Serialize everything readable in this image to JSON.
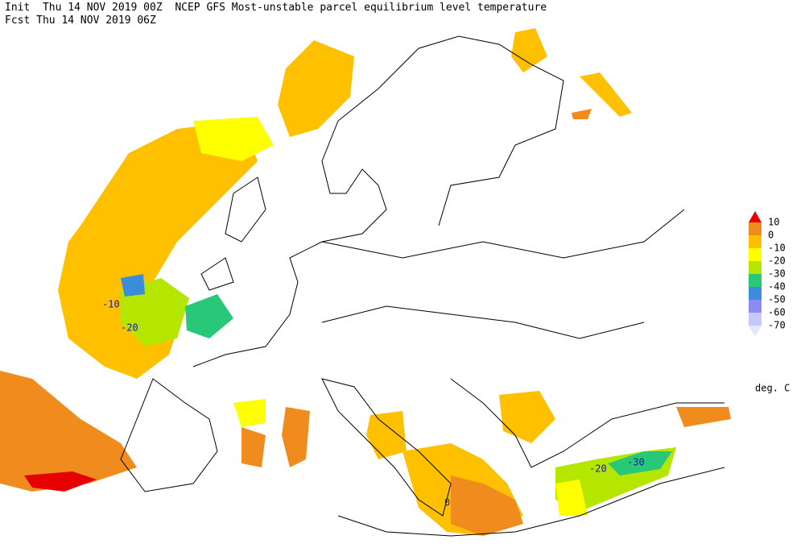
{
  "header": {
    "init": "Init  Thu 14 NOV 2019 00Z  NCEP GFS Most-unstable parcel equilibrium level temperature",
    "forecast": "Fcst Thu 14 NOV 2019 06Z"
  },
  "legend": {
    "unit": "deg. C",
    "levels": [
      10,
      0,
      -10,
      -20,
      -30,
      -40,
      -50,
      -60,
      -70
    ],
    "colors": [
      "#e60000",
      "#f08c1e",
      "#ffc000",
      "#ffff00",
      "#b4e600",
      "#28c878",
      "#3c8cdc",
      "#8c8cf0",
      "#c8c8f8",
      "#e6e6fa"
    ]
  },
  "contour_labels": [
    -10,
    -20,
    -20,
    -30,
    0
  ]
}
